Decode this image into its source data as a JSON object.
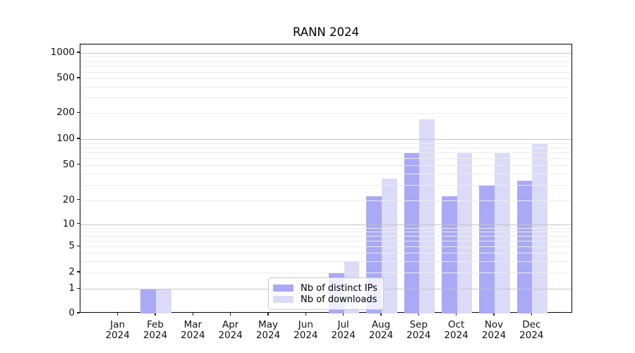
{
  "title": "RANN 2024",
  "chart_data": {
    "type": "bar",
    "title": "RANN 2024",
    "categories": [
      "Jan",
      "Feb",
      "Mar",
      "Apr",
      "May",
      "Jun",
      "Jul",
      "Aug",
      "Sep",
      "Oct",
      "Nov",
      "Dec"
    ],
    "x_year_line": "2024",
    "series": [
      {
        "name": "Nb of distinct IPs",
        "color": "#a9a9f5",
        "values": [
          0,
          1,
          0,
          0,
          0,
          0,
          2,
          22,
          68,
          22,
          29,
          33
        ]
      },
      {
        "name": "Nb of downloads",
        "color": "#dbdbf8",
        "values": [
          0,
          1,
          0,
          0,
          0,
          0,
          3,
          35,
          170,
          70,
          70,
          87
        ]
      }
    ],
    "yticks": [
      0,
      1,
      2,
      5,
      10,
      20,
      50,
      100,
      200,
      500,
      1000
    ],
    "xlabel": "",
    "ylabel": "",
    "yscale": "log-like (linear 0-1, logarithmic above 1)",
    "ylim": [
      0,
      1300
    ],
    "grid": "horizontal major and minor gridlines, drawn over bars",
    "legend_position": "lower center"
  }
}
